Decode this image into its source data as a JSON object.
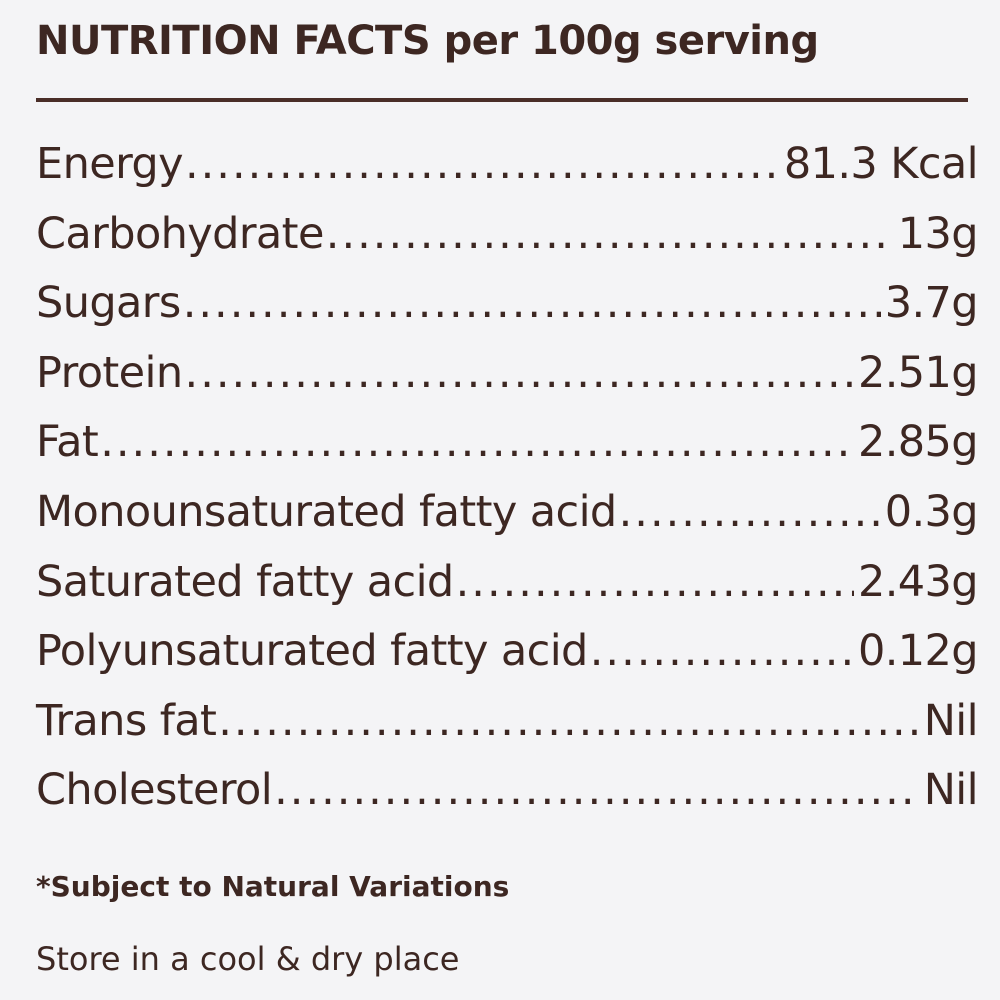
{
  "title": "NUTRITION FACTS per 100g serving",
  "nutrients": [
    {
      "name": "Energy",
      "value": "81.3 Kcal"
    },
    {
      "name": "Carbohydrate",
      "value": "13g"
    },
    {
      "name": "Sugars",
      "value": "3.7g"
    },
    {
      "name": "Protein",
      "value": "2.51g"
    },
    {
      "name": "Fat",
      "value": "2.85g"
    },
    {
      "name": "Monounsaturated fatty acid",
      "value": "0.3g"
    },
    {
      "name": "Saturated fatty acid",
      "value": "2.43g"
    },
    {
      "name": "Polyunsaturated fatty acid",
      "value": "0.12g"
    },
    {
      "name": "Trans fat",
      "value": "Nil"
    },
    {
      "name": "Cholesterol",
      "value": "Nil"
    }
  ],
  "footnote": "*Subject to Natural Variations",
  "storage": "Store in a cool & dry place",
  "colors": {
    "text": "#3d2722",
    "background": "#f4f4f6"
  }
}
